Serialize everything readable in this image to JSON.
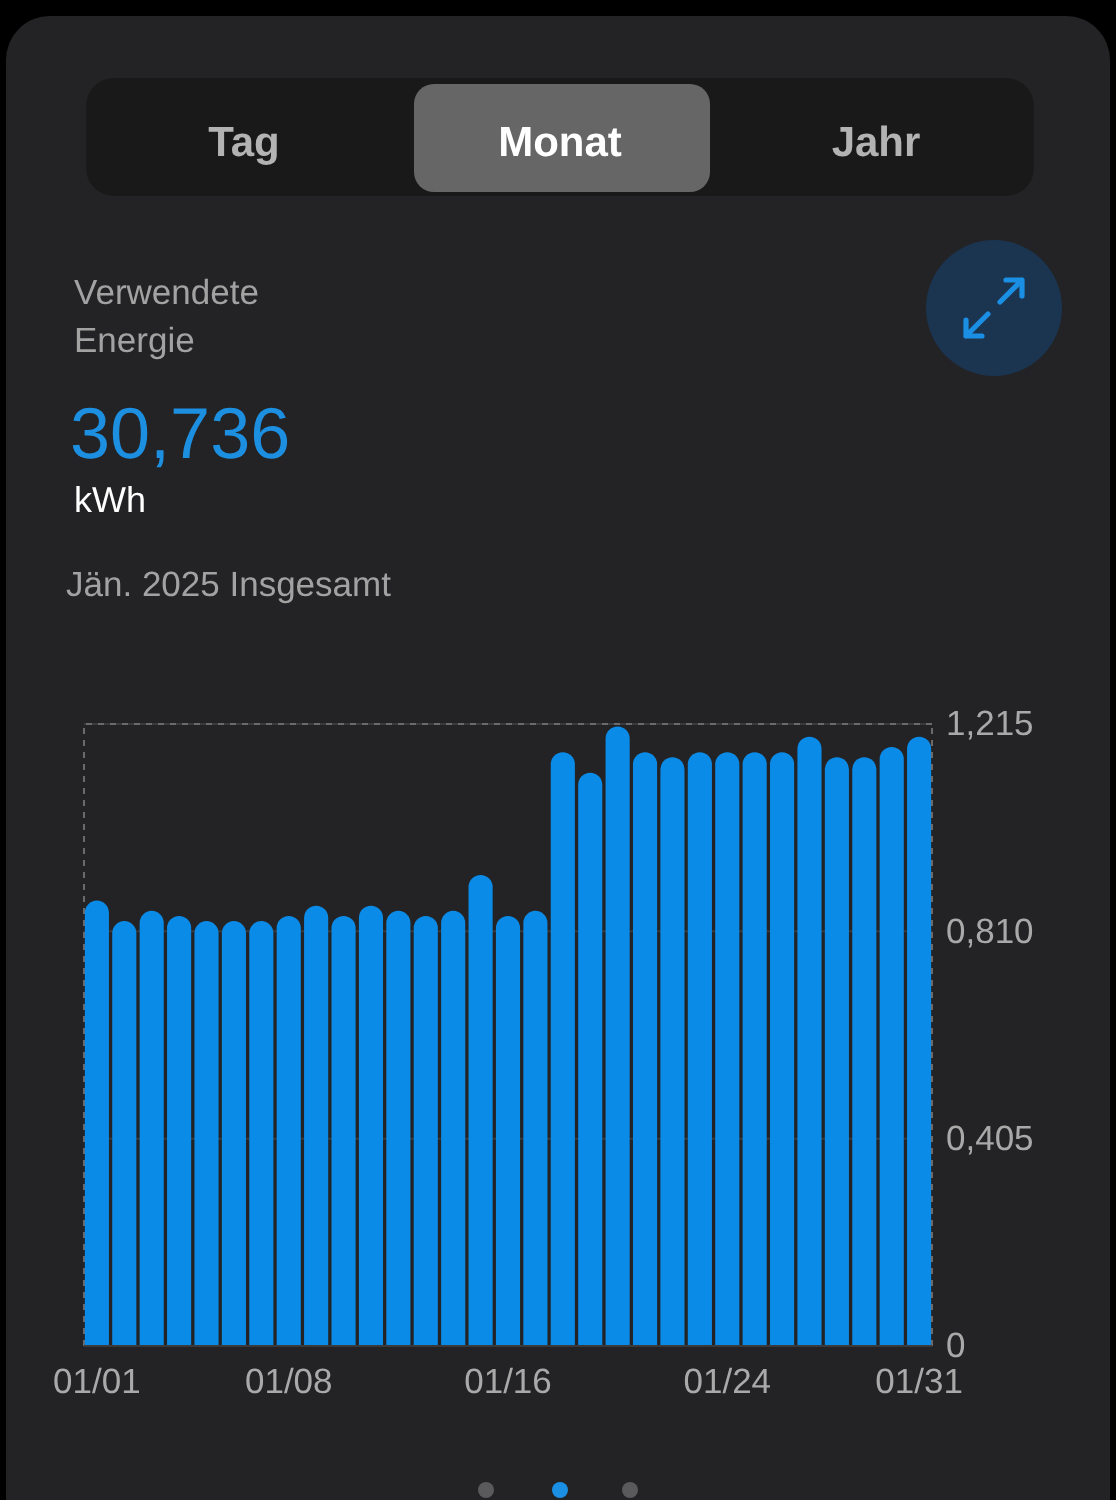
{
  "chart_data": {
    "type": "bar",
    "title": "Verwendete Energie",
    "subtitle": "Jän. 2025 Insgesamt",
    "annotations": [
      "Tag",
      "Monat",
      "Jahr",
      "30,736",
      "kWh"
    ],
    "categories": [
      "01/01",
      null,
      null,
      null,
      null,
      null,
      null,
      "01/08",
      null,
      null,
      null,
      null,
      null,
      null,
      null,
      "01/16",
      null,
      null,
      null,
      null,
      null,
      null,
      null,
      "01/24",
      null,
      null,
      null,
      null,
      null,
      null,
      "01/31"
    ],
    "values": [
      0.87,
      0.83,
      0.85,
      0.84,
      0.83,
      0.83,
      0.83,
      0.84,
      0.86,
      0.84,
      0.86,
      0.85,
      0.84,
      0.85,
      0.92,
      0.84,
      0.85,
      1.16,
      1.12,
      1.21,
      1.16,
      1.15,
      1.16,
      1.16,
      1.16,
      1.16,
      1.19,
      1.15,
      1.15,
      1.17,
      1.19
    ],
    "color": "#0b8be8",
    "ylim": [
      0,
      1.215
    ],
    "yticks": [
      0,
      {
        "value": 0.405,
        "label": "0,405"
      },
      {
        "value": 0.81,
        "label": "0,810"
      },
      {
        "value": 1.215,
        "label": "1,215"
      }
    ],
    "grid": "y"
  }
}
